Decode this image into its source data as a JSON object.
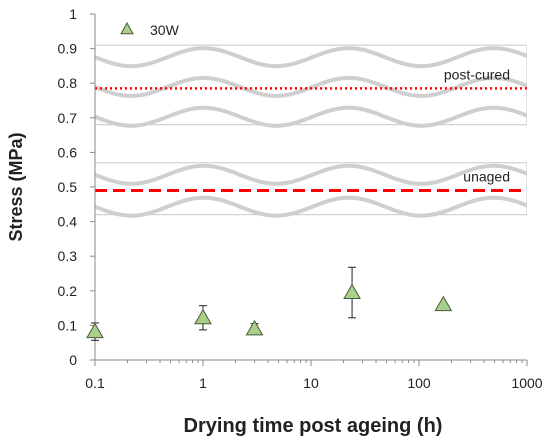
{
  "chart_data": {
    "type": "scatter",
    "xlabel": "Drying time post ageing (h)",
    "ylabel": "Stress (MPa)",
    "xscale": "log",
    "xlim": [
      0.1,
      1000
    ],
    "ylim": [
      0,
      1
    ],
    "x_ticks": [
      "0.1",
      "1",
      "10",
      "100",
      "1000"
    ],
    "y_ticks": [
      "0",
      "0.1",
      "0.2",
      "0.3",
      "0.4",
      "0.5",
      "0.6",
      "0.7",
      "0.8",
      "0.9",
      "1"
    ],
    "grid": false,
    "legend_position": "top-left",
    "series": [
      {
        "name": "30W",
        "marker": "triangle",
        "color": "#a9cf8a",
        "edge_color": "#4a5a3a",
        "points": [
          {
            "x": 0.1,
            "y": 0.082,
            "err": 0.025
          },
          {
            "x": 1,
            "y": 0.122,
            "err": 0.035
          },
          {
            "x": 3,
            "y": 0.09,
            "err": 0.015
          },
          {
            "x": 24,
            "y": 0.195,
            "err": 0.073
          },
          {
            "x": 168,
            "y": 0.16,
            "err": 0
          }
        ]
      }
    ],
    "bands": [
      {
        "label": "post-cured",
        "y": 0.785,
        "ymin": 0.68,
        "ymax": 0.91,
        "line_style": "dotted",
        "line_color": "#ff0000"
      },
      {
        "label": "unaged",
        "y": 0.49,
        "ymin": 0.42,
        "ymax": 0.57,
        "line_style": "dashed",
        "line_color": "#ff0000"
      }
    ]
  }
}
